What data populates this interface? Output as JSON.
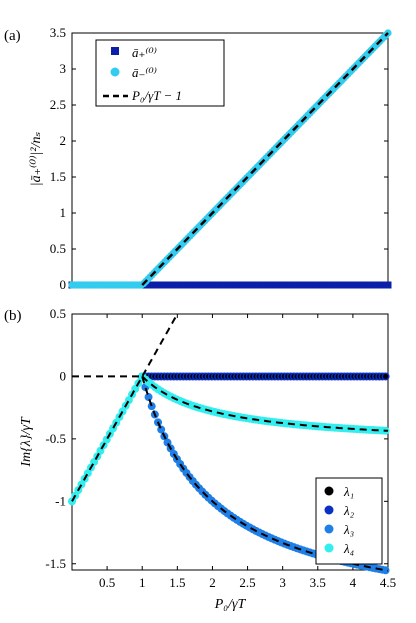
{
  "chart_data": [
    {
      "panel_label": "(a)",
      "type": "scatter",
      "xlim": [
        0,
        4.5
      ],
      "ylim": [
        0,
        3.5
      ],
      "yticks": [
        0,
        0.5,
        1,
        1.5,
        2,
        2.5,
        3,
        3.5
      ],
      "ylabel": "|ā₊⁽⁰⁾|²/nₛ",
      "legend_position": "top-left",
      "series": [
        {
          "name": "ā₊⁽⁰⁾",
          "marker": "square",
          "color": "#0b1fa8",
          "kind": "points",
          "x_range": [
            0,
            4.5
          ],
          "step": 0.03,
          "formula": "0",
          "y_at": [
            [
              0,
              0
            ],
            [
              4.5,
              0
            ]
          ]
        },
        {
          "name": "ā₋⁽⁰⁾",
          "marker": "circle",
          "color": "#33ccee",
          "kind": "points",
          "x_range": [
            0,
            4.5
          ],
          "step": 0.03,
          "formula": "max(0, x-1)",
          "y_at": [
            [
              0,
              0
            ],
            [
              1,
              0
            ],
            [
              4.5,
              3.5
            ]
          ]
        },
        {
          "name": "P₀/γT − 1",
          "marker": "dashed-line",
          "color": "#000000",
          "kind": "line",
          "x": [
            1,
            4.5
          ],
          "y": [
            0,
            3.5
          ]
        }
      ]
    },
    {
      "panel_label": "(b)",
      "type": "scatter",
      "xlim": [
        0,
        4.5
      ],
      "ylim": [
        -1.55,
        0.5
      ],
      "xticks": [
        0.5,
        1,
        1.5,
        2,
        2.5,
        3,
        3.5,
        4,
        4.5
      ],
      "yticks": [
        -1.5,
        -1,
        -0.5,
        0,
        0.5
      ],
      "xlabel": "P₀/γT",
      "ylabel": "Im{λ}/γT",
      "legend_position": "bottom-right",
      "series": [
        {
          "name": "λ₁",
          "color": "#000000",
          "formula": "0 (x>=1)",
          "y_at": [
            [
              1,
              0
            ],
            [
              4.5,
              0
            ]
          ]
        },
        {
          "name": "λ₂",
          "color": "#0a2fc4",
          "formula": "0 (x>=1)",
          "y_at": [
            [
              1,
              0
            ],
            [
              4.5,
              0
            ]
          ]
        },
        {
          "name": "λ₃",
          "color": "#1f7fe6",
          "formula": "x-1 (x<1); -2*(1-1/x) (x>=1)",
          "y_at": [
            [
              0,
              -1
            ],
            [
              1,
              0
            ],
            [
              2,
              -1
            ],
            [
              4.5,
              -1.56
            ]
          ]
        },
        {
          "name": "λ₄",
          "color": "#33eeee",
          "formula": "x-1 (x<1); -0.56*(1-1/x) (x>=1)",
          "y_at": [
            [
              0,
              -1
            ],
            [
              1,
              0
            ],
            [
              2,
              -0.28
            ],
            [
              4.5,
              -0.44
            ]
          ]
        }
      ],
      "dashed_reference": [
        {
          "x": [
            0,
            1
          ],
          "y": [
            0,
            0
          ]
        },
        {
          "x": [
            0,
            1.5
          ],
          "y": [
            -1,
            0.5
          ]
        },
        {
          "x": [
            1,
            4.5
          ],
          "y": [
            0,
            -1.56
          ],
          "shape": "-2*(1-1/x)"
        },
        {
          "x": [
            1,
            4.5
          ],
          "y": [
            0,
            -0.44
          ],
          "shape": "-0.56*(1-1/x)"
        }
      ]
    }
  ],
  "legend_a": [
    "ā₊⁽⁰⁾",
    "ā₋⁽⁰⁾",
    "P₀/γT − 1"
  ],
  "legend_b": [
    "λ₁",
    "λ₂",
    "λ₃",
    "λ₄"
  ]
}
